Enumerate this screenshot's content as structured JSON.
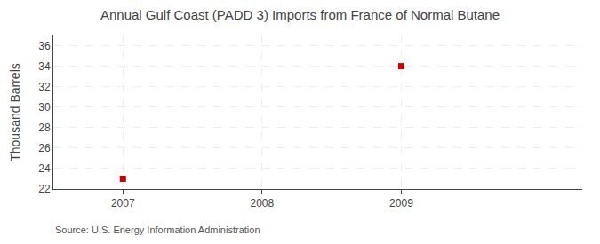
{
  "chart_data": {
    "type": "scatter",
    "title": "Annual Gulf Coast (PADD 3) Imports from France of Normal Butane",
    "ylabel": "Thousand Barrels",
    "annotations": [
      "Source: U.S. Energy Information Administration"
    ],
    "x": [
      2007,
      2009
    ],
    "values": [
      23,
      34
    ],
    "color": "#cc0000",
    "marker": "square",
    "xlim": [
      2006.5,
      2010.3
    ],
    "ylim": [
      22,
      37
    ],
    "xticks": [
      2007,
      2008,
      2009
    ],
    "yticks": [
      22,
      24,
      26,
      28,
      30,
      32,
      34,
      36
    ],
    "grid": true
  }
}
